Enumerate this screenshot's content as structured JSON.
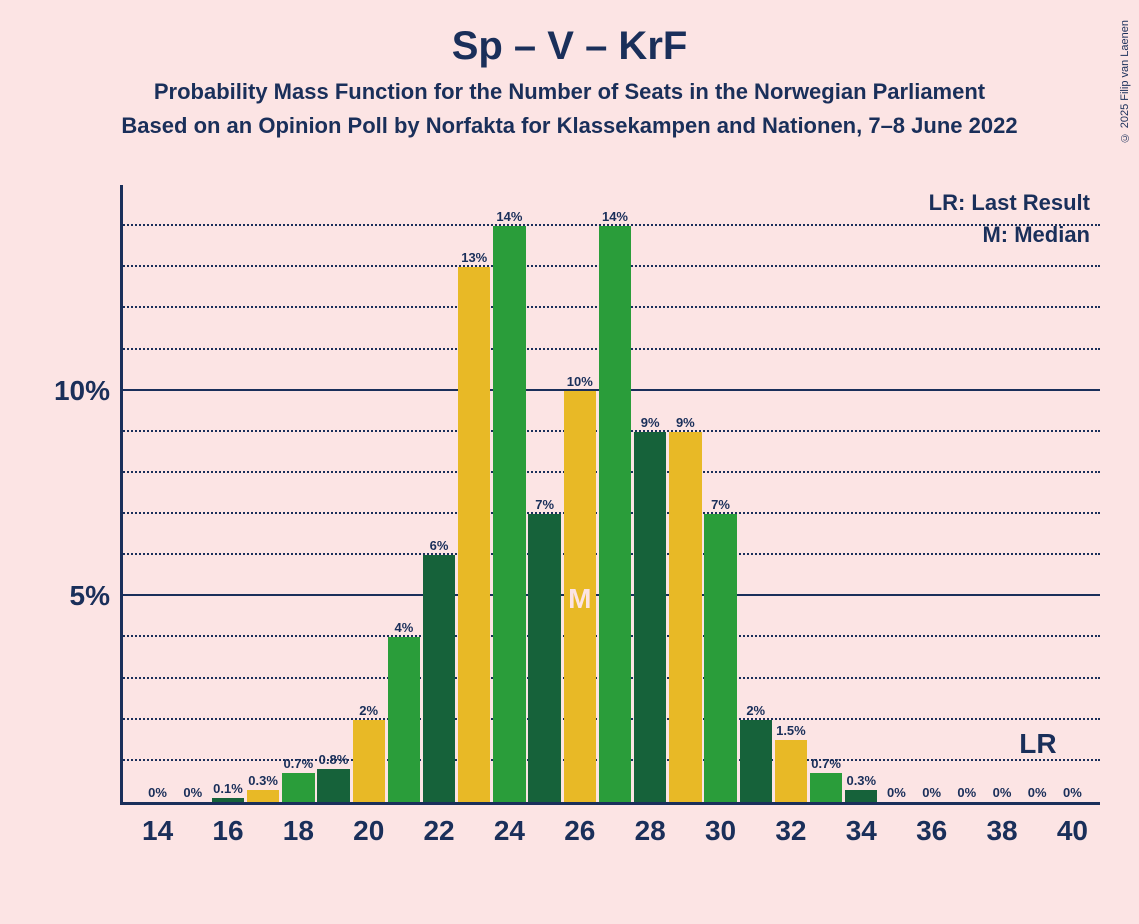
{
  "title": "Sp – V – KrF",
  "subtitle1": "Probability Mass Function for the Number of Seats in the Norwegian Parliament",
  "subtitle2": "Based on an Opinion Poll by Norfakta for Klassekampen and Nationen, 7–8 June 2022",
  "copyright": "© 2025 Filip van Laenen",
  "chart": {
    "type": "bar",
    "background_color": "#fce4e4",
    "axis_color": "#1a2f5a",
    "text_color": "#1a2f5a",
    "bar_colors": [
      "#e8b926",
      "#2a9d3a",
      "#16623a"
    ],
    "ylim": [
      0,
      15
    ],
    "ytick_major": [
      5,
      10
    ],
    "ytick_major_labels": [
      "5%",
      "10%"
    ],
    "ytick_minor_step": 1,
    "x_start": 14,
    "x_end": 40,
    "x_labels_shown": [
      14,
      16,
      18,
      20,
      22,
      24,
      26,
      28,
      30,
      32,
      34,
      36,
      38,
      40
    ],
    "plot_left_margin": 20,
    "bar_group_width": 35,
    "bar_width": 11.5,
    "bars": [
      {
        "x": 14,
        "color_idx": 0,
        "value": 0,
        "label": "0%"
      },
      {
        "x": 15,
        "color_idx": 1,
        "value": 0,
        "label": "0%"
      },
      {
        "x": 16,
        "color_idx": 2,
        "value": 0.1,
        "label": "0.1%"
      },
      {
        "x": 17,
        "color_idx": 0,
        "value": 0.3,
        "label": "0.3%"
      },
      {
        "x": 18,
        "color_idx": 1,
        "value": 0.7,
        "label": "0.7%"
      },
      {
        "x": 19,
        "color_idx": 2,
        "value": 0.8,
        "label": "0.8%"
      },
      {
        "x": 20,
        "color_idx": 0,
        "value": 2,
        "label": "2%"
      },
      {
        "x": 21,
        "color_idx": 1,
        "value": 4,
        "label": "4%"
      },
      {
        "x": 22,
        "color_idx": 2,
        "value": 6,
        "label": "6%"
      },
      {
        "x": 23,
        "color_idx": 0,
        "value": 13,
        "label": "13%"
      },
      {
        "x": 24,
        "color_idx": 1,
        "value": 14,
        "label": "14%"
      },
      {
        "x": 25,
        "color_idx": 2,
        "value": 7,
        "label": "7%"
      },
      {
        "x": 26,
        "color_idx": 0,
        "value": 10,
        "label": "10%",
        "median": true
      },
      {
        "x": 27,
        "color_idx": 1,
        "value": 14,
        "label": "14%"
      },
      {
        "x": 28,
        "color_idx": 2,
        "value": 9,
        "label": "9%"
      },
      {
        "x": 29,
        "color_idx": 0,
        "value": 9,
        "label": "9%"
      },
      {
        "x": 30,
        "color_idx": 1,
        "value": 7,
        "label": "7%"
      },
      {
        "x": 31,
        "color_idx": 2,
        "value": 2,
        "label": "2%"
      },
      {
        "x": 32,
        "color_idx": 0,
        "value": 1.5,
        "label": "1.5%"
      },
      {
        "x": 33,
        "color_idx": 1,
        "value": 0.7,
        "label": "0.7%"
      },
      {
        "x": 34,
        "color_idx": 2,
        "value": 0.3,
        "label": "0.3%"
      },
      {
        "x": 35,
        "color_idx": 0,
        "value": 0,
        "label": "0%"
      },
      {
        "x": 36,
        "color_idx": 1,
        "value": 0,
        "label": "0%"
      },
      {
        "x": 37,
        "color_idx": 2,
        "value": 0,
        "label": "0%"
      },
      {
        "x": 38,
        "color_idx": 0,
        "value": 0,
        "label": "0%"
      },
      {
        "x": 39,
        "color_idx": 1,
        "value": 0,
        "label": "0%"
      },
      {
        "x": 40,
        "color_idx": 2,
        "value": 0,
        "label": "0%"
      }
    ],
    "legend": {
      "lr": "LR: Last Result",
      "m": "M: Median"
    },
    "median_label": "M",
    "lr_label": "LR",
    "lr_x": 39
  }
}
